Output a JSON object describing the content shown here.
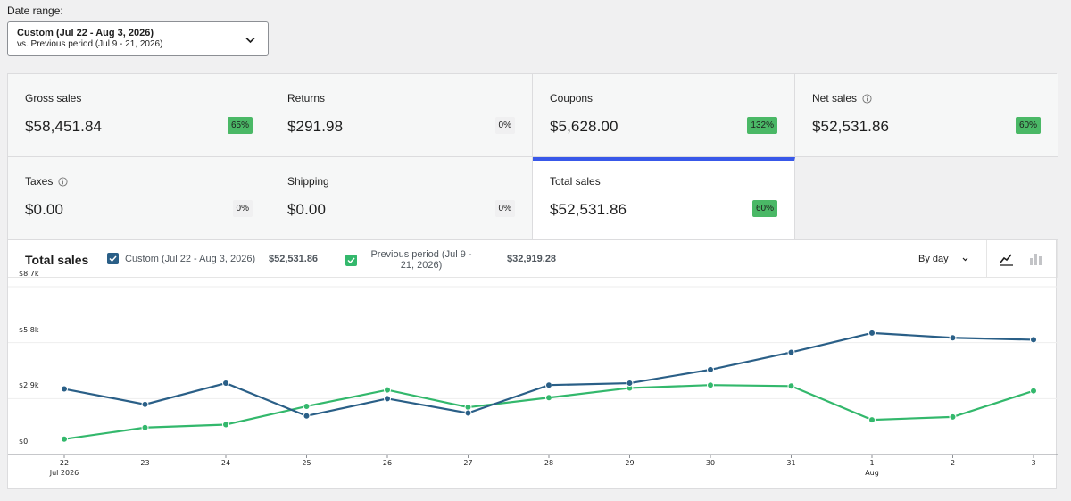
{
  "date_range": {
    "label": "Date range:",
    "primary": "Custom (Jul 22 - Aug 3, 2026)",
    "secondary": "vs. Previous period (Jul 9 - 21, 2026)"
  },
  "cards": [
    {
      "title": "Gross sales",
      "value": "$58,451.84",
      "delta": "65%",
      "positive": true,
      "info": false
    },
    {
      "title": "Returns",
      "value": "$291.98",
      "delta": "0%",
      "positive": false,
      "info": false
    },
    {
      "title": "Coupons",
      "value": "$5,628.00",
      "delta": "132%",
      "positive": true,
      "info": false
    },
    {
      "title": "Net sales",
      "value": "$52,531.86",
      "delta": "60%",
      "positive": true,
      "info": true
    },
    {
      "title": "Taxes",
      "value": "$0.00",
      "delta": "0%",
      "positive": false,
      "info": true
    },
    {
      "title": "Shipping",
      "value": "$0.00",
      "delta": "0%",
      "positive": false,
      "info": false
    },
    {
      "title": "Total sales",
      "value": "$52,531.86",
      "delta": "60%",
      "positive": true,
      "info": false,
      "selected": true
    }
  ],
  "chart_header": {
    "title": "Total sales",
    "legend": [
      {
        "label": "Custom (Jul 22 - Aug 3, 2026)",
        "value": "$52,531.86",
        "color": "#2a5f87"
      },
      {
        "label": "Previous period (Jul 9 - 21, 2026)",
        "value": "$32,919.28",
        "color": "#33b86c"
      }
    ],
    "interval": "By day",
    "chart_type_icons": [
      "line-chart-icon",
      "bar-chart-icon"
    ]
  },
  "colors": {
    "accent": "#3858e9",
    "current": "#2a5f87",
    "previous": "#33b86c",
    "positive_badge": "#4ab866"
  },
  "chart_data": {
    "type": "line",
    "x": [
      "22",
      "23",
      "24",
      "25",
      "26",
      "27",
      "28",
      "29",
      "30",
      "31",
      "1",
      "2",
      "3"
    ],
    "x_sublabels": {
      "0": "Jul 2026",
      "10": "Aug"
    },
    "y_ticks": [
      "$0",
      "$2.9k",
      "$5.8k",
      "$8.7k"
    ],
    "ylim": [
      0,
      8700
    ],
    "grid": true,
    "series": [
      {
        "name": "Custom (Jul 22 - Aug 3, 2026)",
        "values": [
          3400,
          2600,
          3700,
          2000,
          2900,
          2150,
          3600,
          3700,
          4400,
          5300,
          6300,
          6050,
          5950
        ]
      },
      {
        "name": "Previous period (Jul 9 - 21, 2026)",
        "values": [
          800,
          1400,
          1550,
          2500,
          3350,
          2450,
          2950,
          3450,
          3600,
          3550,
          1800,
          1950,
          3300
        ]
      }
    ]
  }
}
